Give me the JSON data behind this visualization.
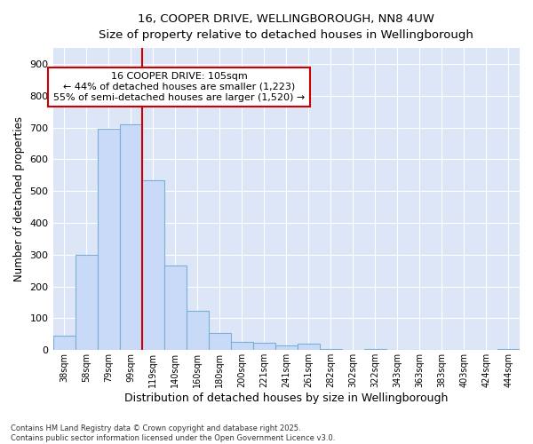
{
  "title_line1": "16, COOPER DRIVE, WELLINGBOROUGH, NN8 4UW",
  "title_line2": "Size of property relative to detached houses in Wellingborough",
  "xlabel": "Distribution of detached houses by size in Wellingborough",
  "ylabel": "Number of detached properties",
  "categories": [
    "38sqm",
    "58sqm",
    "79sqm",
    "99sqm",
    "119sqm",
    "140sqm",
    "160sqm",
    "180sqm",
    "200sqm",
    "221sqm",
    "241sqm",
    "261sqm",
    "282sqm",
    "302sqm",
    "322sqm",
    "343sqm",
    "363sqm",
    "383sqm",
    "403sqm",
    "424sqm",
    "444sqm"
  ],
  "values": [
    45,
    300,
    695,
    710,
    535,
    265,
    125,
    55,
    27,
    22,
    15,
    20,
    3,
    2,
    3,
    1,
    1,
    1,
    0,
    0,
    4
  ],
  "bar_color": "#c9daf8",
  "bar_edge_color": "#7bafd4",
  "vline_x_index": 3.5,
  "vline_color": "#cc0000",
  "annotation_text": "16 COOPER DRIVE: 105sqm\n← 44% of detached houses are smaller (1,223)\n55% of semi-detached houses are larger (1,520) →",
  "annotation_box_edge_color": "#cc0000",
  "bg_color": "#dce6f7",
  "grid_color": "#ffffff",
  "fig_bg_color": "#ffffff",
  "footer_text": "Contains HM Land Registry data © Crown copyright and database right 2025.\nContains public sector information licensed under the Open Government Licence v3.0.",
  "ylim": [
    0,
    950
  ],
  "yticks": [
    0,
    100,
    200,
    300,
    400,
    500,
    600,
    700,
    800,
    900
  ]
}
